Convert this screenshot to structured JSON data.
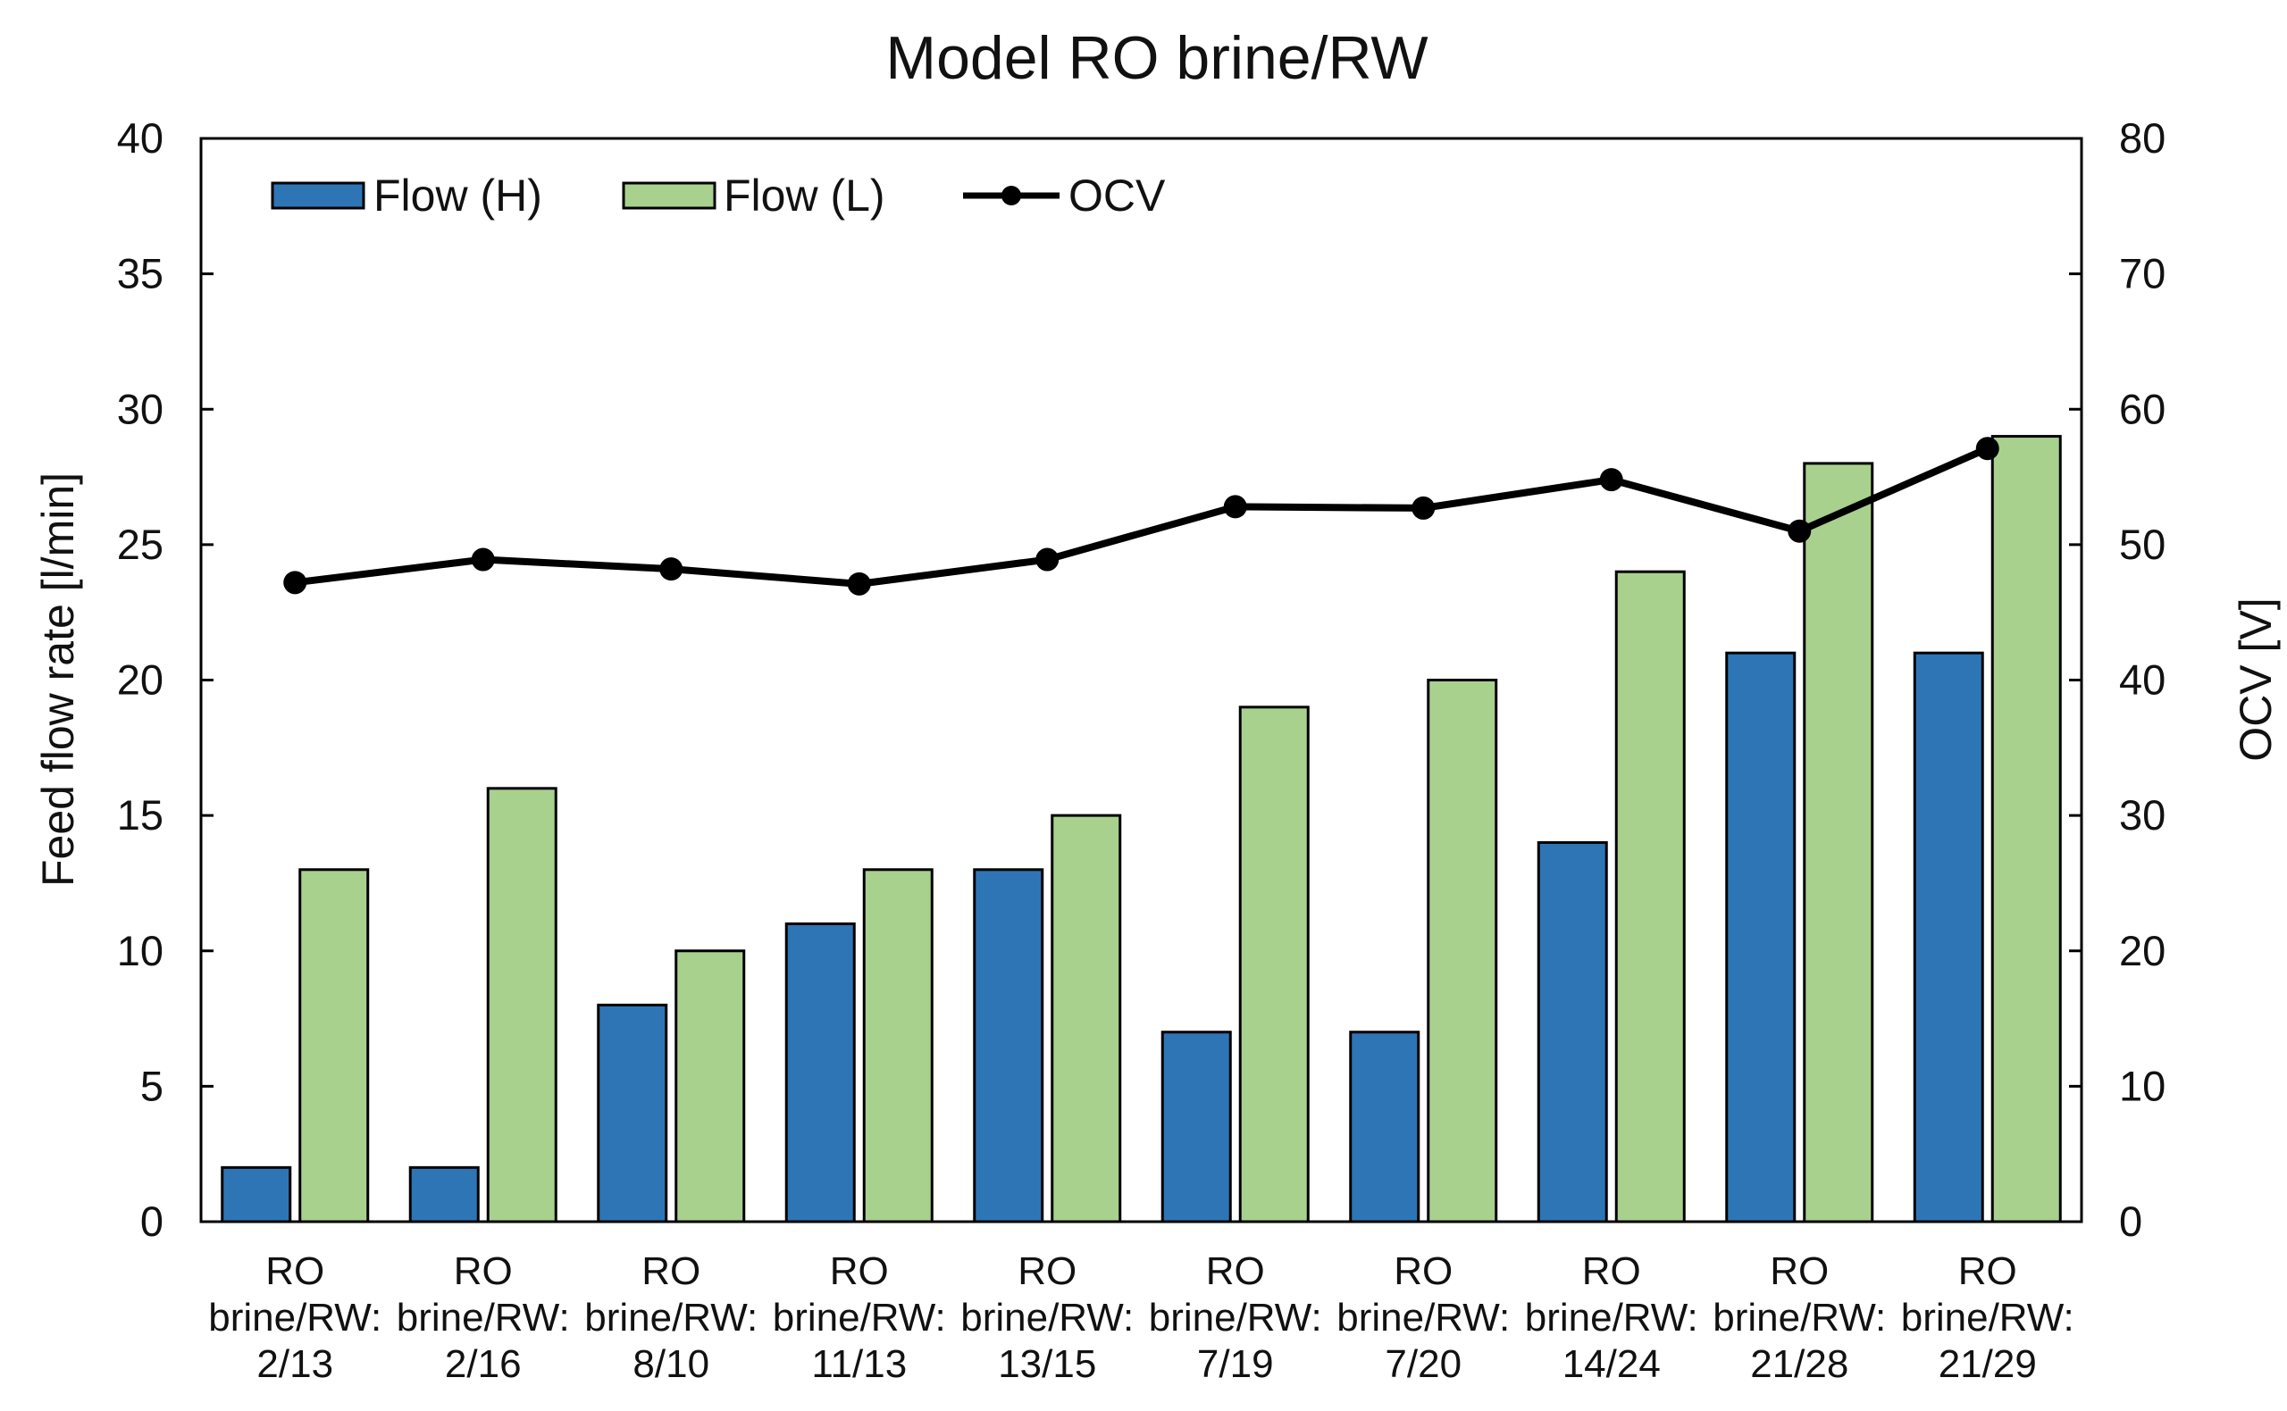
{
  "chart_data": {
    "type": "bar",
    "title": "Model RO brine/RW",
    "categories": [
      [
        "RO",
        "brine/RW:",
        "2/13"
      ],
      [
        "RO",
        "brine/RW:",
        "2/16"
      ],
      [
        "RO",
        "brine/RW:",
        "8/10"
      ],
      [
        "RO",
        "brine/RW:",
        "11/13"
      ],
      [
        "RO",
        "brine/RW:",
        "13/15"
      ],
      [
        "RO",
        "brine/RW:",
        "7/19"
      ],
      [
        "RO",
        "brine/RW:",
        "7/20"
      ],
      [
        "RO",
        "brine/RW:",
        "14/24"
      ],
      [
        "RO",
        "brine/RW:",
        "21/28"
      ],
      [
        "RO",
        "brine/RW:",
        "21/29"
      ]
    ],
    "series": [
      {
        "name": "Flow (H)",
        "type": "bar",
        "axis": "left",
        "color": "#2e75b6",
        "values": [
          2,
          2,
          8,
          11,
          13,
          7,
          7,
          14,
          21,
          21
        ]
      },
      {
        "name": "Flow (L)",
        "type": "bar",
        "axis": "left",
        "color": "#a9d18e",
        "values": [
          13,
          16,
          10,
          13,
          15,
          19,
          20,
          24,
          28,
          29
        ]
      },
      {
        "name": "OCV",
        "type": "line",
        "axis": "right",
        "color": "#000000",
        "values": [
          47.2,
          48.9,
          48.2,
          47.1,
          48.9,
          52.8,
          52.7,
          54.8,
          51.0,
          57.1
        ]
      }
    ],
    "ylabel": "Feed flow rate [l/min]",
    "y2label": "OCV [V]",
    "ylim": [
      0,
      40
    ],
    "y2lim": [
      0,
      80
    ],
    "yticks": [
      0,
      5,
      10,
      15,
      20,
      25,
      30,
      35,
      40
    ],
    "y2ticks": [
      0,
      10,
      20,
      30,
      40,
      50,
      60,
      70,
      80
    ],
    "legend_position": "top-left",
    "grid": false
  }
}
